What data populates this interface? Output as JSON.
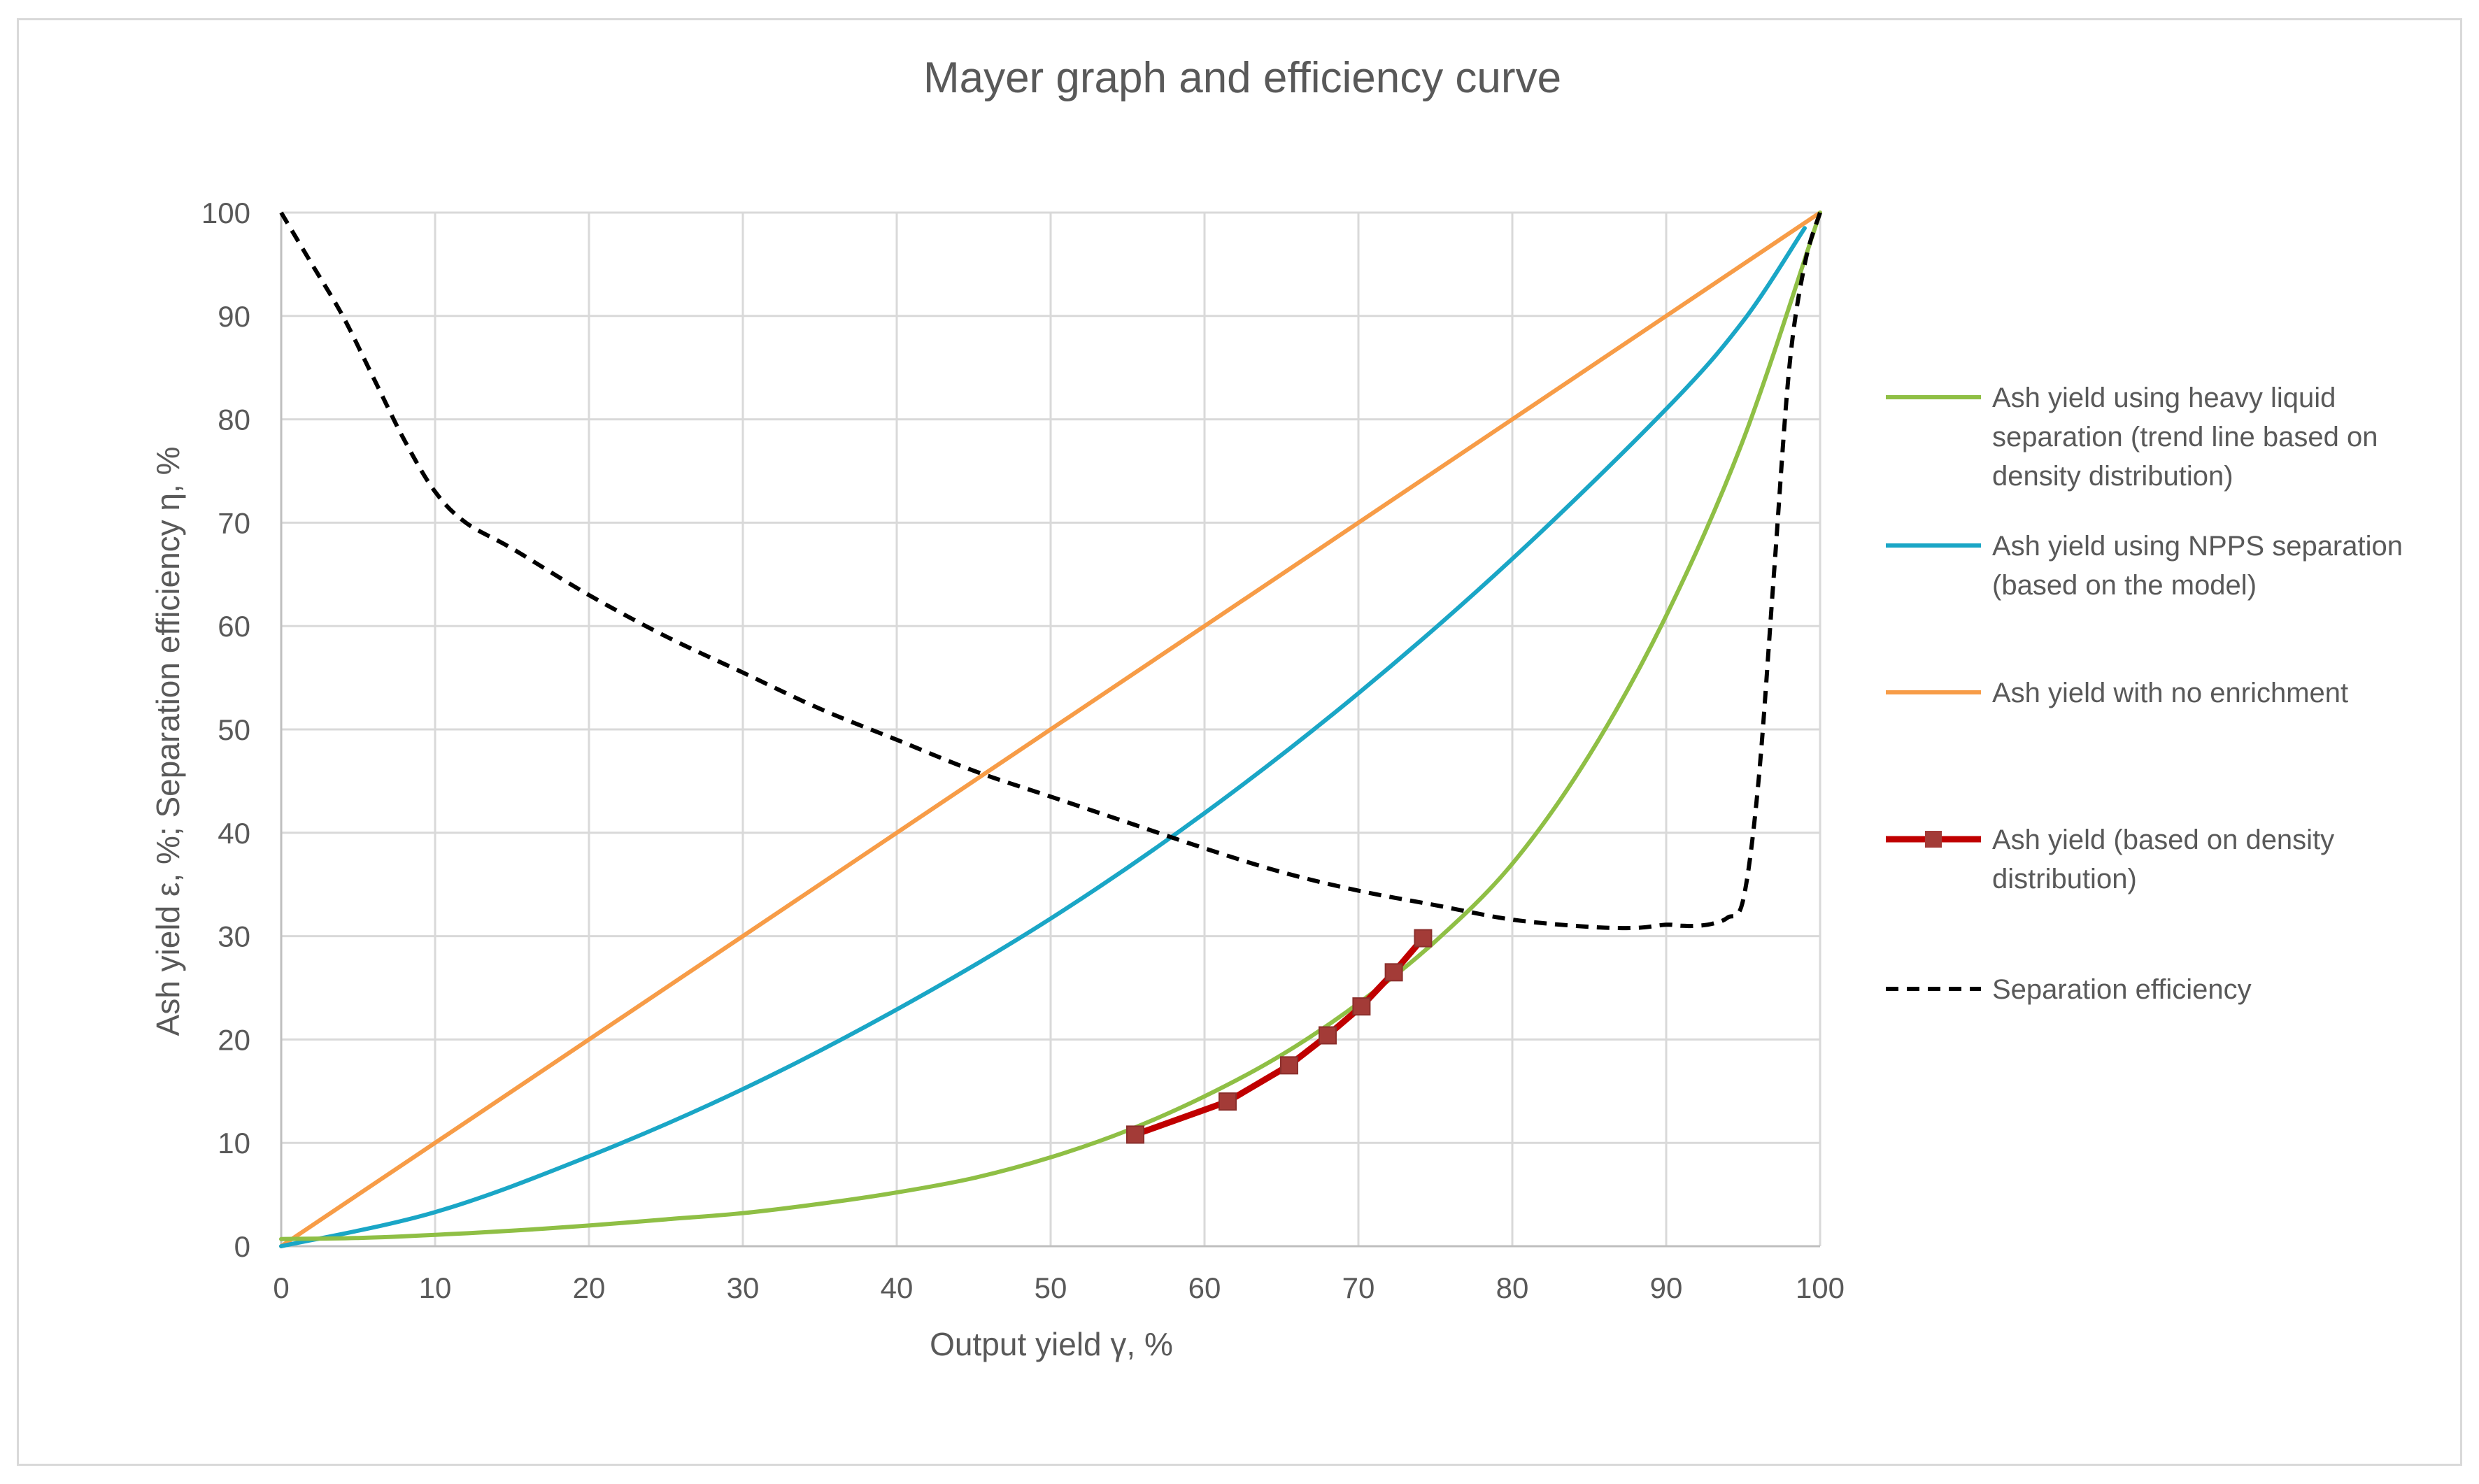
{
  "chart_data": {
    "type": "line",
    "title": "Mayer graph and efficiency curve",
    "xlabel": "Output yield γ, %",
    "ylabel": "Ash yield ε, %; Separation efficiency η, %",
    "xlim": [
      0,
      100
    ],
    "ylim": [
      0,
      100
    ],
    "xticks": [
      "0",
      "10",
      "20",
      "30",
      "40",
      "50",
      "60",
      "70",
      "80",
      "90",
      "100"
    ],
    "yticks": [
      "0",
      "10",
      "20",
      "30",
      "40",
      "50",
      "60",
      "70",
      "80",
      "90",
      "100"
    ],
    "grid": true,
    "legend_position": "right",
    "series": [
      {
        "name": "heavy-liquid",
        "label_lines": [
          "Ash yield using heavy liquid",
          "separation (trend line based on",
          "density distribution)"
        ],
        "color": "#8fbf45",
        "style": "solid",
        "x": [
          0,
          5,
          10,
          15,
          20,
          25,
          30,
          35,
          40,
          45,
          50,
          55,
          60,
          65,
          70,
          75,
          80,
          85,
          90,
          95,
          100
        ],
        "y": [
          0.7,
          0.8,
          1.1,
          1.5,
          2.0,
          2.6,
          3.2,
          4.1,
          5.2,
          6.6,
          8.6,
          11.2,
          14.5,
          18.5,
          23.5,
          29.5,
          37.0,
          47.5,
          61.0,
          78.0,
          100.0
        ]
      },
      {
        "name": "npps",
        "label_lines": [
          "Ash yield using NPPS separation",
          "(based on the model)"
        ],
        "color": "#1aa6c6",
        "style": "solid",
        "x": [
          0,
          10,
          20,
          30,
          40,
          50,
          60,
          70,
          80,
          90,
          95,
          99
        ],
        "y": [
          0,
          3.3,
          8.7,
          15.2,
          22.9,
          31.7,
          41.9,
          53.5,
          66.5,
          81.0,
          89.5,
          98.5
        ]
      },
      {
        "name": "no-enrichment",
        "label_lines": [
          "Ash yield with no enrichment"
        ],
        "color": "#f79c47",
        "style": "solid",
        "x": [
          0,
          100
        ],
        "y": [
          0,
          100
        ]
      },
      {
        "name": "density-distribution",
        "label_lines": [
          "Ash yield (based on density",
          "distribution)"
        ],
        "color": "#c00000",
        "marker_color": "#a33b37",
        "style": "solid-markers",
        "x": [
          55.5,
          61.5,
          65.5,
          68.0,
          70.2,
          72.3,
          74.2
        ],
        "y": [
          10.8,
          14.0,
          17.5,
          20.4,
          23.2,
          26.5,
          29.8
        ]
      },
      {
        "name": "separation-efficiency",
        "label_lines": [
          "Separation efficiency"
        ],
        "color": "#000000",
        "style": "dashed",
        "x": [
          0,
          2,
          4,
          6,
          8,
          10,
          12,
          15,
          20,
          25,
          30,
          35,
          40,
          45,
          50,
          55,
          60,
          65,
          70,
          75,
          80,
          85,
          88,
          90,
          91,
          92,
          93,
          94,
          95,
          96,
          97,
          98,
          99,
          100
        ],
        "y": [
          100,
          95,
          90,
          84,
          78,
          73,
          70,
          67.5,
          63,
          59,
          55.5,
          52,
          49,
          46,
          43.5,
          41,
          38.5,
          36.2,
          34.4,
          33,
          31.6,
          30.9,
          30.8,
          31.1,
          31.0,
          31.0,
          31.2,
          31.8,
          33.5,
          45,
          65,
          85,
          95,
          100
        ]
      }
    ]
  }
}
